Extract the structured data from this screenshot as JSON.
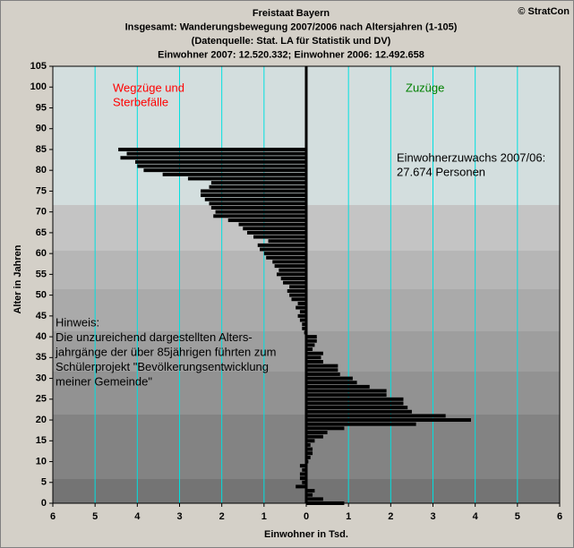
{
  "chart_data": {
    "type": "hbar",
    "title": [
      "Freistaat Bayern",
      "Insgesamt: Wanderungsbewegung 2007/2006  nach Altersjahren (1-105)",
      "(Datenquelle: Stat. LA für Statistik und DV)",
      "Einwohner 2007: 12.520.332;   Einwohner 2006: 12.492.658"
    ],
    "copyright": "© StratCon",
    "left_label": [
      "Wegzüge und",
      "Sterbefälle"
    ],
    "right_label": "Zuzüge",
    "annotation": [
      "Einwohnerzuwachs 2007/06:",
      "27.674 Personen"
    ],
    "note": [
      "Hinweis:",
      "Die unzureichend dargestellten Alters-",
      "jahrgänge der über 85jährigen führten zum",
      "Schülerprojekt \"Bevölkerungsentwicklung",
      "meiner Gemeinde\""
    ],
    "x_label": "Einwohner in Tsd.",
    "y_label": "Alter in Jahren",
    "color": "#000000",
    "y": [
      0,
      1,
      2,
      3,
      4,
      5,
      6,
      7,
      8,
      9,
      10,
      11,
      12,
      13,
      14,
      15,
      16,
      17,
      18,
      19,
      20,
      21,
      22,
      23,
      24,
      25,
      26,
      27,
      28,
      29,
      30,
      31,
      32,
      33,
      34,
      35,
      36,
      37,
      38,
      39,
      40,
      41,
      42,
      43,
      44,
      45,
      46,
      47,
      48,
      49,
      50,
      51,
      52,
      53,
      54,
      55,
      56,
      57,
      58,
      59,
      60,
      61,
      62,
      63,
      64,
      65,
      66,
      67,
      68,
      69,
      70,
      71,
      72,
      73,
      74,
      75,
      76,
      77,
      78,
      79,
      80,
      81,
      82,
      83,
      84,
      85
    ],
    "values": [
      0.9,
      0.4,
      0.15,
      0.2,
      -0.25,
      -0.1,
      -0.15,
      -0.15,
      -0.1,
      -0.15,
      0.05,
      0.1,
      0.15,
      0.15,
      0.1,
      0.2,
      0.4,
      0.5,
      0.9,
      2.6,
      3.9,
      3.3,
      2.5,
      2.4,
      2.3,
      2.3,
      1.9,
      1.9,
      1.5,
      1.2,
      1.1,
      0.8,
      0.75,
      0.75,
      0.4,
      0.35,
      0.4,
      0.15,
      0.2,
      0.25,
      0.25,
      -0.05,
      -0.1,
      -0.1,
      -0.15,
      -0.2,
      -0.15,
      -0.25,
      -0.2,
      -0.35,
      -0.4,
      -0.45,
      -0.4,
      -0.55,
      -0.6,
      -0.7,
      -0.65,
      -0.75,
      -0.8,
      -0.95,
      -1.0,
      -1.1,
      -1.15,
      -0.9,
      -1.25,
      -1.4,
      -1.5,
      -1.6,
      -1.85,
      -2.2,
      -2.15,
      -2.25,
      -2.3,
      -2.4,
      -2.5,
      -2.5,
      -2.3,
      -2.25,
      -2.8,
      -3.4,
      -3.85,
      -4.0,
      -4.05,
      -4.4,
      -4.25,
      -4.45
    ],
    "xlim": [
      -6,
      6
    ],
    "xticks": [
      {
        "value": -6,
        "label": "6"
      },
      {
        "value": -5,
        "label": "5"
      },
      {
        "value": -4,
        "label": "4"
      },
      {
        "value": -3,
        "label": "3"
      },
      {
        "value": -2,
        "label": "2"
      },
      {
        "value": -1,
        "label": "1"
      },
      0,
      1,
      2,
      3,
      4,
      5,
      6
    ],
    "ylim": [
      0,
      105
    ],
    "yticks": [
      0,
      5,
      10,
      15,
      20,
      25,
      30,
      35,
      40,
      45,
      50,
      55,
      60,
      65,
      70,
      75,
      80,
      85,
      90,
      95,
      100,
      105
    ],
    "grid_color": "#00e0e0"
  }
}
